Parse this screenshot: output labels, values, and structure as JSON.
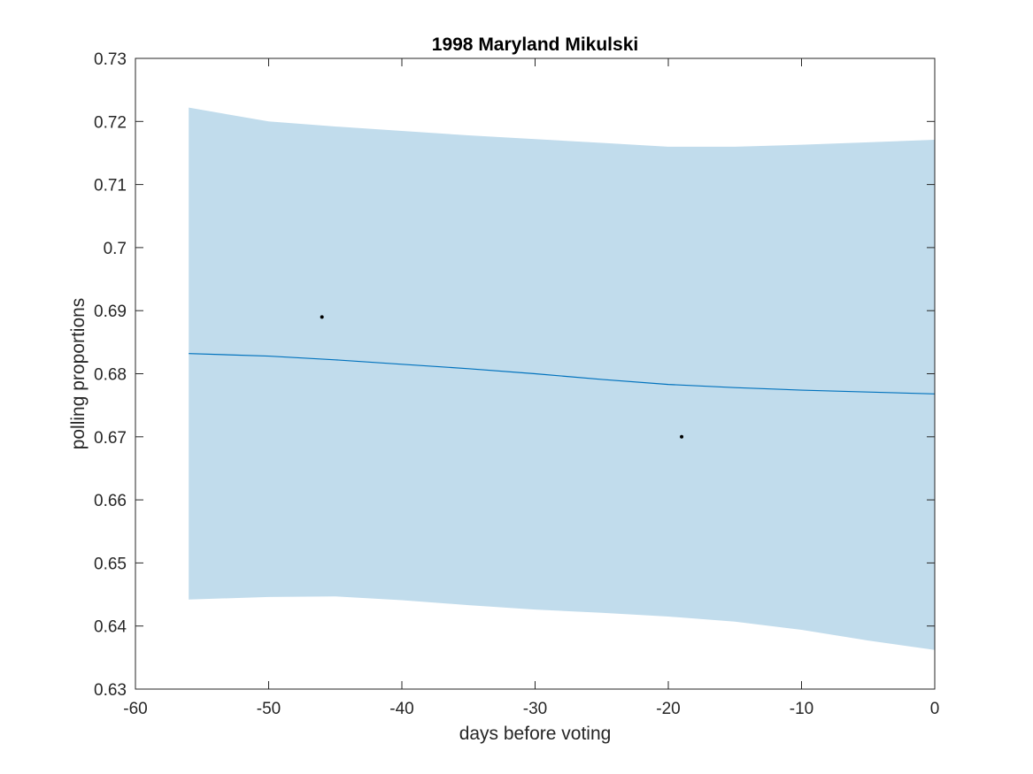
{
  "chart_data": {
    "type": "line",
    "title": "1998 Maryland Mikulski",
    "xlabel": "days before voting",
    "ylabel": "polling proportions",
    "xlim": [
      -60,
      0
    ],
    "ylim": [
      0.63,
      0.73
    ],
    "xticks": [
      -60,
      -50,
      -40,
      -30,
      -20,
      -10,
      0
    ],
    "xtick_labels": [
      "-60",
      "-50",
      "-40",
      "-30",
      "-20",
      "-10",
      "0"
    ],
    "yticks": [
      0.63,
      0.64,
      0.65,
      0.66,
      0.67,
      0.68,
      0.69,
      0.7,
      0.71,
      0.72,
      0.73
    ],
    "ytick_labels": [
      "0.63",
      "0.64",
      "0.65",
      "0.66",
      "0.67",
      "0.68",
      "0.69",
      "0.7",
      "0.71",
      "0.72",
      "0.73"
    ],
    "grid": false,
    "colors": {
      "band": "#c1dcec",
      "line": "#0072bd",
      "points": "#000000",
      "axes": "#262626"
    },
    "band": {
      "x": [
        -56,
        -50,
        -45,
        -40,
        -35,
        -30,
        -25,
        -20,
        -15,
        -10,
        -5,
        0
      ],
      "upper": [
        0.7222,
        0.72,
        0.7192,
        0.7185,
        0.7178,
        0.7172,
        0.7166,
        0.716,
        0.716,
        0.7163,
        0.7167,
        0.7171
      ],
      "lower": [
        0.6442,
        0.6446,
        0.6447,
        0.6441,
        0.6433,
        0.6426,
        0.6421,
        0.6415,
        0.6407,
        0.6394,
        0.6377,
        0.6362
      ]
    },
    "series": [
      {
        "x": [
          -56,
          -50,
          -45,
          -40,
          -35,
          -30,
          -25,
          -20,
          -15,
          -10,
          -5,
          0
        ],
        "values": [
          0.6832,
          0.6828,
          0.6822,
          0.6815,
          0.6808,
          0.68,
          0.6791,
          0.6783,
          0.6778,
          0.6774,
          0.6771,
          0.6768
        ]
      }
    ],
    "points": [
      {
        "x": -46,
        "y": 0.689
      },
      {
        "x": -19,
        "y": 0.67
      }
    ]
  }
}
